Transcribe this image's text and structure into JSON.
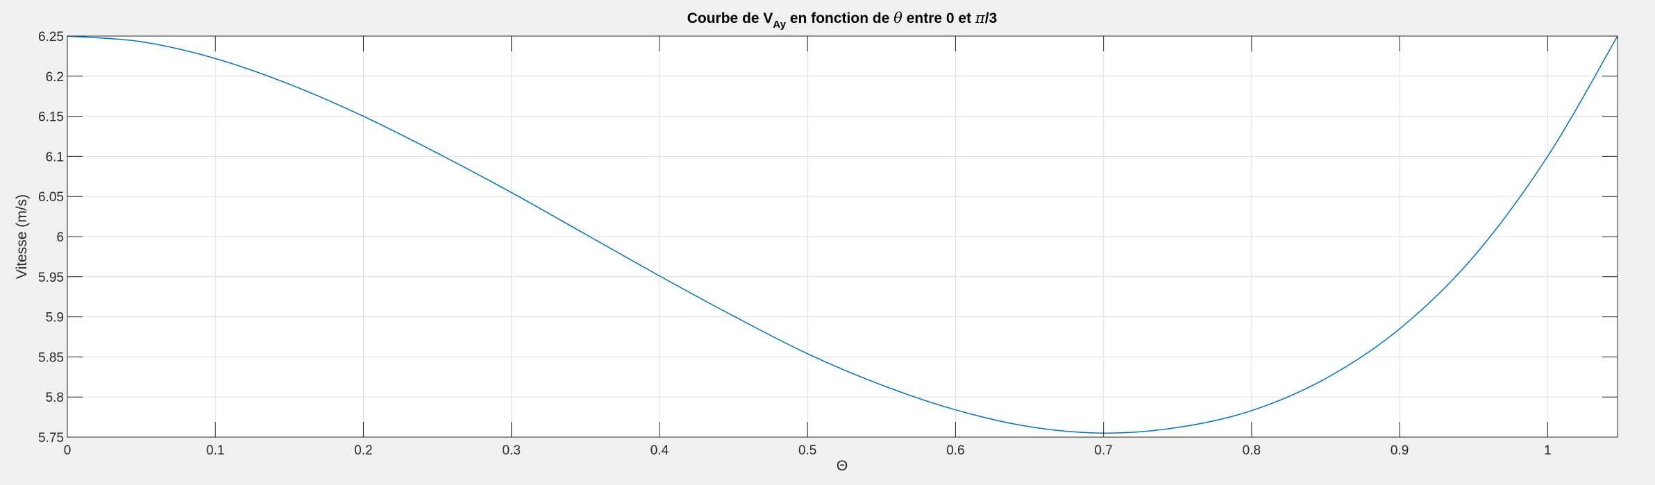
{
  "chart_data": {
    "type": "line",
    "title": {
      "prefix": "Courbe de V",
      "subscript": "Ay",
      "middle": " en fonction de ",
      "symbol": "θ",
      "between": " entre 0 et ",
      "pi": "π",
      "suffix": "/3"
    },
    "xlabel": "Θ",
    "ylabel": "Vitesse (m/s)",
    "xlim": [
      0,
      1.0472
    ],
    "ylim": [
      5.75,
      6.25
    ],
    "x_ticks": [
      0,
      0.1,
      0.2,
      0.3,
      0.4,
      0.5,
      0.6,
      0.7,
      0.8,
      0.9,
      1
    ],
    "x_tick_labels": [
      "0",
      "0.1",
      "0.2",
      "0.3",
      "0.4",
      "0.5",
      "0.6",
      "0.7",
      "0.8",
      "0.9",
      "1"
    ],
    "y_ticks": [
      5.75,
      5.8,
      5.85,
      5.9,
      5.95,
      6,
      6.05,
      6.1,
      6.15,
      6.2,
      6.25
    ],
    "y_tick_labels": [
      "5.75",
      "5.8",
      "5.85",
      "5.9",
      "5.95",
      "6",
      "6.05",
      "6.1",
      "6.15",
      "6.2",
      "6.25"
    ],
    "grid": true,
    "series": [
      {
        "color": "#0072bd",
        "x": [
          0,
          0.05,
          0.1,
          0.15,
          0.2,
          0.25,
          0.3,
          0.35,
          0.4,
          0.45,
          0.5,
          0.55,
          0.6,
          0.65,
          0.7,
          0.75,
          0.8,
          0.85,
          0.9,
          0.95,
          1.0,
          1.0472
        ],
        "y": [
          6.25,
          6.243,
          6.222,
          6.19,
          6.15,
          6.104,
          6.055,
          6.003,
          5.951,
          5.901,
          5.854,
          5.815,
          5.784,
          5.763,
          5.755,
          5.762,
          5.783,
          5.823,
          5.885,
          5.975,
          6.1,
          6.25
        ]
      }
    ]
  }
}
